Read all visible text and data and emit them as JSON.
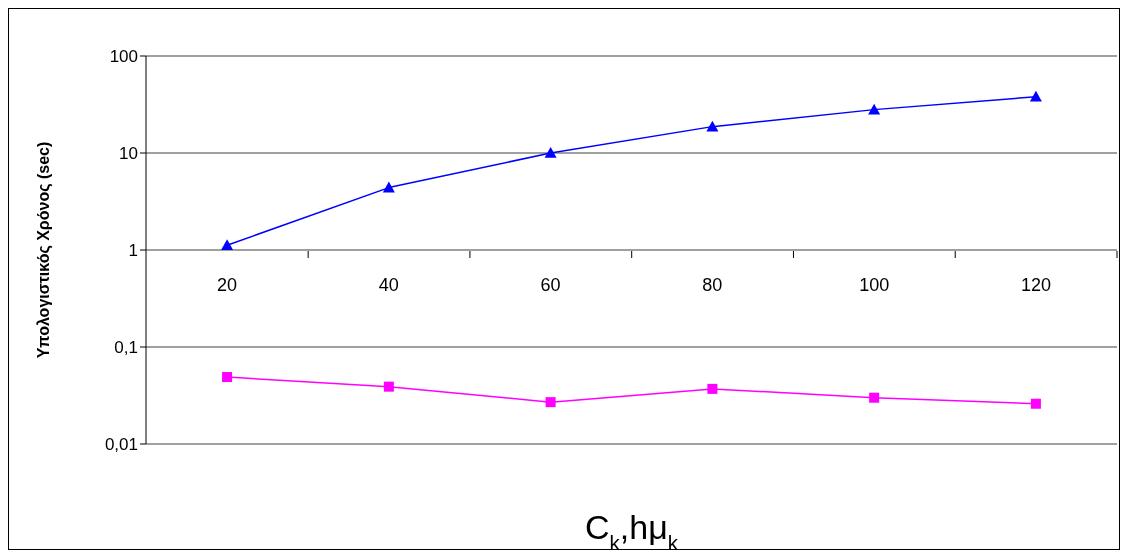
{
  "chart_data": {
    "type": "line",
    "xlabel": "C$_{k}$,hμ$_{k}$",
    "ylabel": "Υπολογιστικός Χρόνος (sec)",
    "categories": [
      "20",
      "40",
      "60",
      "80",
      "100",
      "120"
    ],
    "series": [
      {
        "color": "#0000ff",
        "marker": "triangle",
        "values": [
          1.12,
          4.4,
          10,
          18.7,
          28,
          38
        ]
      },
      {
        "color": "#ff00ff",
        "marker": "square",
        "values": [
          0.049,
          0.039,
          0.027,
          0.037,
          0.03,
          0.026
        ]
      }
    ],
    "log": "y",
    "ylim": [
      0.01,
      100
    ],
    "yticks": [
      {
        "value": 0.01,
        "label": "0,01"
      },
      {
        "value": 0.1,
        "label": "0,1"
      },
      1,
      10,
      100
    ],
    "grid": "y"
  }
}
